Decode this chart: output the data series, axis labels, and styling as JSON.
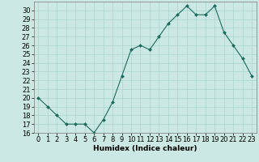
{
  "x": [
    0,
    1,
    2,
    3,
    4,
    5,
    6,
    7,
    8,
    9,
    10,
    11,
    12,
    13,
    14,
    15,
    16,
    17,
    18,
    19,
    20,
    21,
    22,
    23
  ],
  "y": [
    20,
    19,
    18,
    17,
    17,
    17,
    16,
    17.5,
    19.5,
    22.5,
    25.5,
    26,
    25.5,
    27,
    28.5,
    29.5,
    30.5,
    29.5,
    29.5,
    30.5,
    27.5,
    26,
    24.5,
    22.5
  ],
  "xlabel": "Humidex (Indice chaleur)",
  "ylim": [
    16,
    31
  ],
  "xlim": [
    -0.5,
    23.5
  ],
  "yticks": [
    16,
    17,
    18,
    19,
    20,
    21,
    22,
    23,
    24,
    25,
    26,
    27,
    28,
    29,
    30
  ],
  "xticks": [
    0,
    1,
    2,
    3,
    4,
    5,
    6,
    7,
    8,
    9,
    10,
    11,
    12,
    13,
    14,
    15,
    16,
    17,
    18,
    19,
    20,
    21,
    22,
    23
  ],
  "line_color": "#1a6b5e",
  "marker_color": "#1a6b5e",
  "bg_color": "#cce8e4",
  "grid_color": "#aad4cf",
  "label_fontsize": 6.5,
  "tick_fontsize": 6.0
}
